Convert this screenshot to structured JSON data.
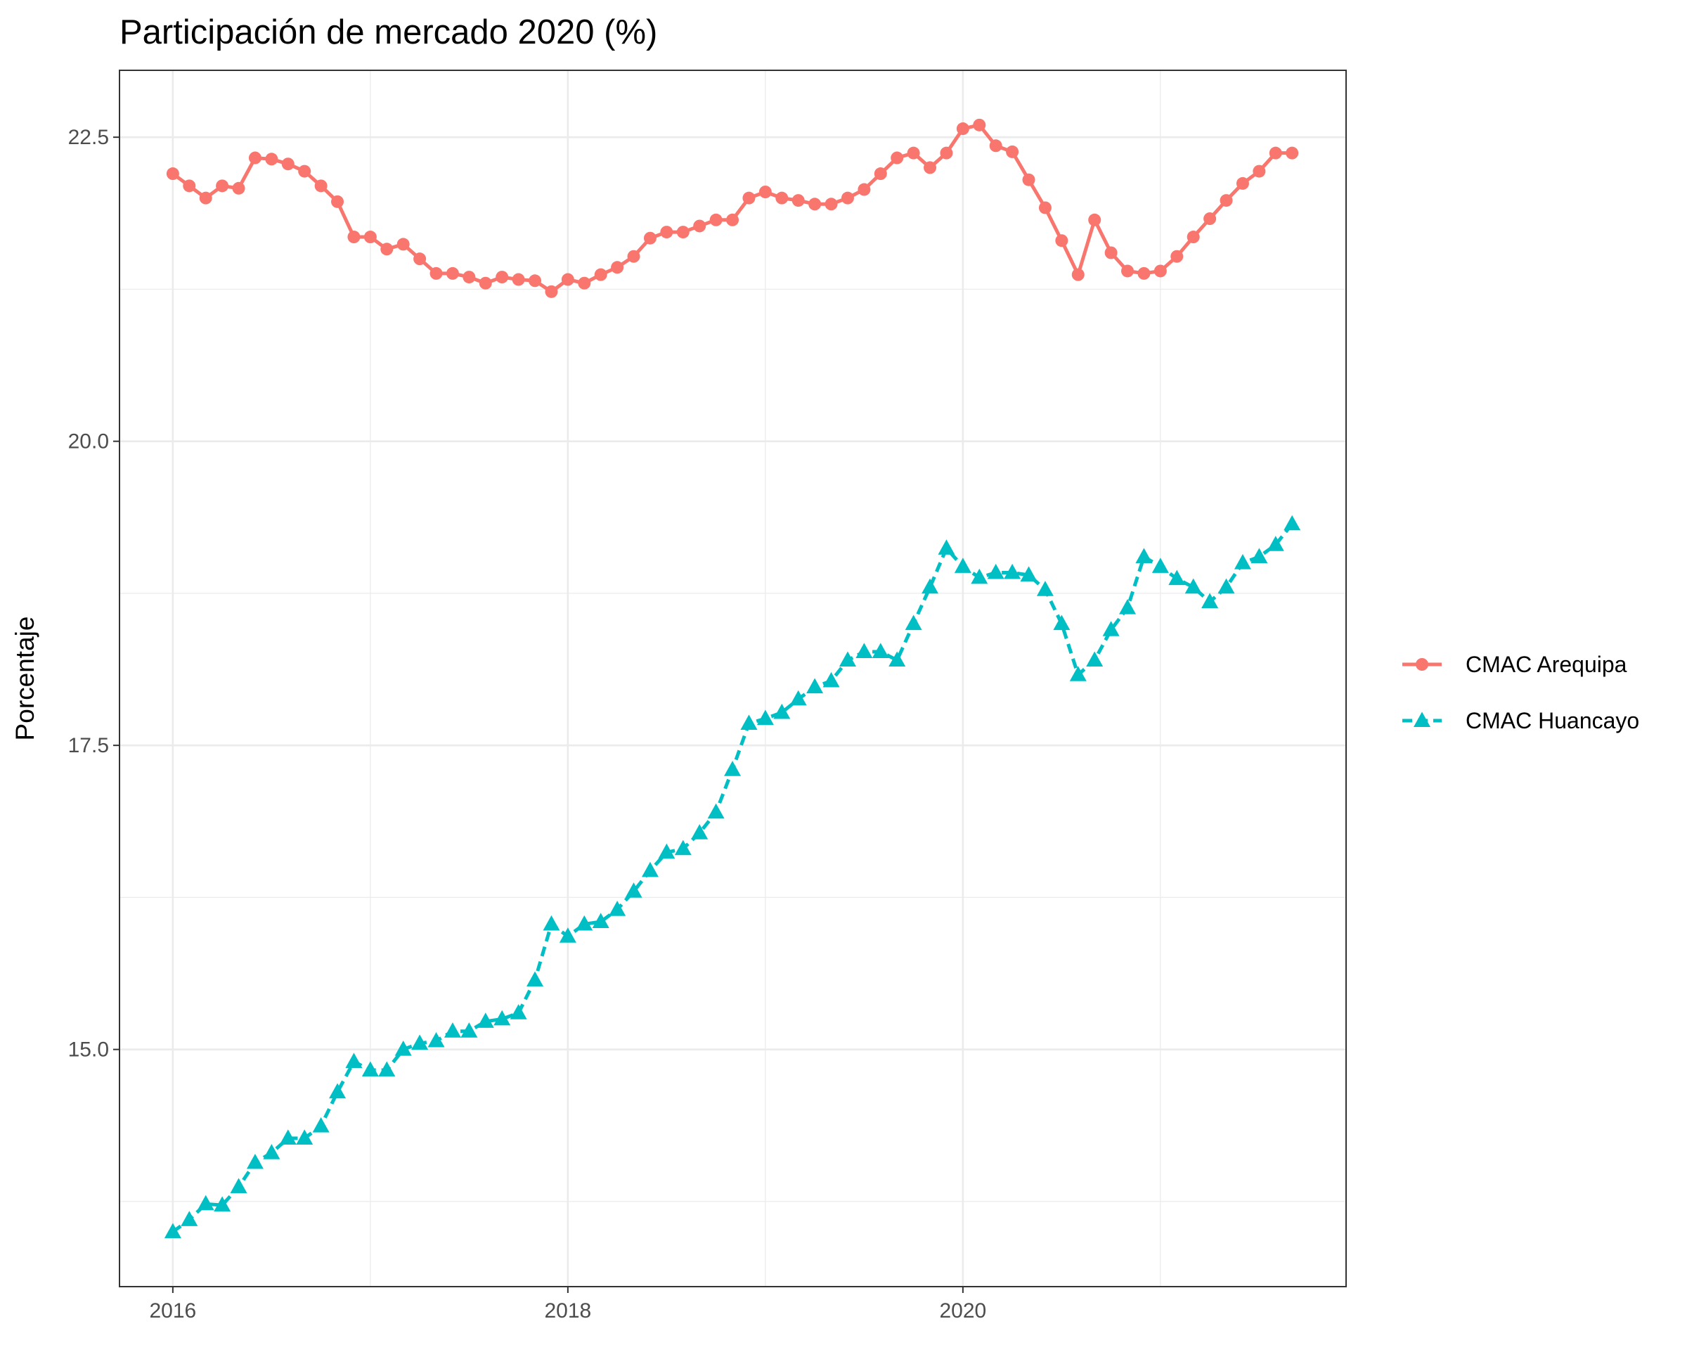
{
  "chart_data": {
    "type": "line",
    "title": "Participación de mercado 2020 (%)",
    "xlabel": "",
    "ylabel": "Porcentaje",
    "xlim": [
      2015.73,
      2021.94
    ],
    "ylim": [
      13.05,
      23.05
    ],
    "x_ticks": [
      2016,
      2018,
      2020
    ],
    "x_tick_labels": [
      "2016",
      "2018",
      "2020"
    ],
    "y_ticks": [
      15.0,
      17.5,
      20.0,
      22.5
    ],
    "y_tick_labels": [
      "15.0",
      "17.5",
      "20.0",
      "22.5"
    ],
    "grid": true,
    "legend": {
      "position": "right"
    },
    "x_start": "2016-01",
    "x_frequency": "monthly",
    "series": [
      {
        "name": "CMAC Arequipa",
        "color": "#F8766D",
        "marker": "circle",
        "line_style": "solid",
        "values": [
          22.2,
          22.1,
          22.0,
          22.1,
          22.08,
          22.33,
          22.32,
          22.28,
          22.22,
          22.1,
          21.97,
          21.68,
          21.68,
          21.58,
          21.62,
          21.5,
          21.38,
          21.38,
          21.35,
          21.3,
          21.35,
          21.33,
          21.32,
          21.23,
          21.33,
          21.3,
          21.37,
          21.43,
          21.52,
          21.67,
          21.72,
          21.72,
          21.77,
          21.82,
          21.82,
          22.0,
          22.05,
          22.0,
          21.98,
          21.95,
          21.95,
          22.0,
          22.07,
          22.2,
          22.33,
          22.37,
          22.25,
          22.37,
          22.57,
          22.6,
          22.43,
          22.38,
          22.15,
          21.92,
          21.65,
          21.37,
          21.82,
          21.55,
          21.4,
          21.38,
          21.4,
          21.52,
          21.68,
          21.83,
          21.98,
          22.12,
          22.22,
          22.37,
          22.37
        ]
      },
      {
        "name": "CMAC Huancayo",
        "color": "#00BFC4",
        "marker": "triangle",
        "line_style": "dashed",
        "values": [
          13.5,
          13.6,
          13.73,
          13.72,
          13.87,
          14.07,
          14.15,
          14.27,
          14.27,
          14.37,
          14.65,
          14.9,
          14.83,
          14.83,
          15.0,
          15.05,
          15.07,
          15.15,
          15.15,
          15.23,
          15.25,
          15.3,
          15.57,
          16.03,
          15.93,
          16.03,
          16.05,
          16.15,
          16.3,
          16.47,
          16.62,
          16.65,
          16.78,
          16.95,
          17.3,
          17.68,
          17.72,
          17.77,
          17.88,
          17.98,
          18.03,
          18.2,
          18.27,
          18.27,
          18.2,
          18.5,
          18.8,
          19.12,
          18.97,
          18.88,
          18.92,
          18.92,
          18.9,
          18.78,
          18.5,
          18.08,
          18.2,
          18.45,
          18.63,
          19.05,
          18.97,
          18.87,
          18.8,
          18.68,
          18.8,
          19.0,
          19.05,
          19.15,
          19.32
        ]
      }
    ]
  }
}
